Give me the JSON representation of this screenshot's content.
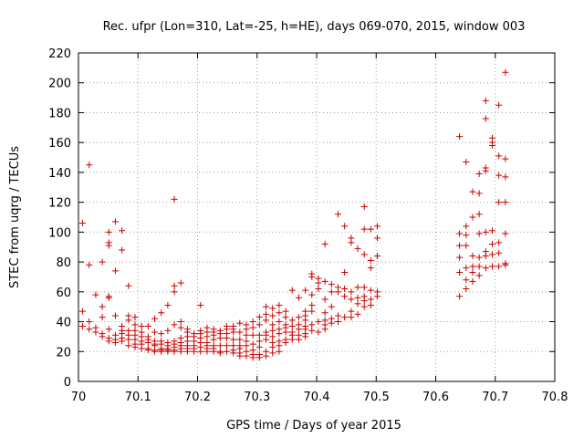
{
  "chart_data": {
    "type": "scatter",
    "title": "Rec. ufpr (Lon=310, Lat=-25, h=HE), days 069-070, 2015, window 003",
    "xlabel": "GPS time / Days of year 2015",
    "ylabel": "STEC from uqrg / TECUs",
    "xlim": [
      70,
      70.8
    ],
    "ylim": [
      0,
      220
    ],
    "xticks": [
      70,
      70.1,
      70.2,
      70.3,
      70.4,
      70.5,
      70.6,
      70.7,
      70.8
    ],
    "xtick_labels": [
      "70",
      "70.1",
      "70.2",
      "70.3",
      "70.4",
      "70.5",
      "70.6",
      "70.7",
      "70.8"
    ],
    "yticks": [
      0,
      20,
      40,
      60,
      80,
      100,
      120,
      140,
      160,
      180,
      200,
      220
    ],
    "ytick_labels": [
      "0",
      "20",
      "40",
      "60",
      "80",
      "100",
      "120",
      "140",
      "160",
      "180",
      "200",
      "220"
    ],
    "grid": true,
    "marker": "+",
    "color": "#cc0000",
    "points": [
      [
        70.007,
        106
      ],
      [
        70.007,
        47
      ],
      [
        70.007,
        37
      ],
      [
        70.018,
        78
      ],
      [
        70.018,
        145
      ],
      [
        70.018,
        40
      ],
      [
        70.018,
        35
      ],
      [
        70.029,
        58
      ],
      [
        70.029,
        36
      ],
      [
        70.029,
        33
      ],
      [
        70.04,
        80
      ],
      [
        70.04,
        50
      ],
      [
        70.04,
        43
      ],
      [
        70.04,
        32
      ],
      [
        70.04,
        30
      ],
      [
        70.051,
        100
      ],
      [
        70.051,
        93
      ],
      [
        70.051,
        91
      ],
      [
        70.051,
        57
      ],
      [
        70.051,
        56
      ],
      [
        70.051,
        35
      ],
      [
        70.051,
        29
      ],
      [
        70.051,
        27
      ],
      [
        70.062,
        107
      ],
      [
        70.062,
        74
      ],
      [
        70.062,
        44
      ],
      [
        70.062,
        31
      ],
      [
        70.062,
        28
      ],
      [
        70.062,
        26
      ],
      [
        70.073,
        101
      ],
      [
        70.073,
        88
      ],
      [
        70.073,
        37
      ],
      [
        70.073,
        34
      ],
      [
        70.073,
        32
      ],
      [
        70.073,
        29
      ],
      [
        70.073,
        27
      ],
      [
        70.084,
        64
      ],
      [
        70.084,
        44
      ],
      [
        70.084,
        41
      ],
      [
        70.084,
        34
      ],
      [
        70.084,
        31
      ],
      [
        70.084,
        28
      ],
      [
        70.084,
        24
      ],
      [
        70.095,
        43
      ],
      [
        70.095,
        38
      ],
      [
        70.095,
        34
      ],
      [
        70.095,
        31
      ],
      [
        70.095,
        28
      ],
      [
        70.095,
        25
      ],
      [
        70.095,
        23
      ],
      [
        70.106,
        37
      ],
      [
        70.106,
        33
      ],
      [
        70.106,
        30
      ],
      [
        70.106,
        27
      ],
      [
        70.106,
        25
      ],
      [
        70.106,
        22
      ],
      [
        70.117,
        37
      ],
      [
        70.117,
        30
      ],
      [
        70.117,
        28
      ],
      [
        70.117,
        26
      ],
      [
        70.117,
        22
      ],
      [
        70.117,
        21
      ],
      [
        70.128,
        42
      ],
      [
        70.128,
        33
      ],
      [
        70.128,
        27
      ],
      [
        70.128,
        25
      ],
      [
        70.128,
        24
      ],
      [
        70.128,
        21
      ],
      [
        70.128,
        20
      ],
      [
        70.139,
        46
      ],
      [
        70.139,
        32
      ],
      [
        70.139,
        27
      ],
      [
        70.139,
        25
      ],
      [
        70.139,
        22
      ],
      [
        70.139,
        21
      ],
      [
        70.139,
        20
      ],
      [
        70.15,
        51
      ],
      [
        70.15,
        34
      ],
      [
        70.15,
        26
      ],
      [
        70.15,
        24
      ],
      [
        70.15,
        22
      ],
      [
        70.15,
        21
      ],
      [
        70.15,
        20
      ],
      [
        70.161,
        122
      ],
      [
        70.161,
        64
      ],
      [
        70.161,
        60
      ],
      [
        70.161,
        38
      ],
      [
        70.161,
        27
      ],
      [
        70.161,
        25
      ],
      [
        70.161,
        23
      ],
      [
        70.161,
        21
      ],
      [
        70.161,
        20
      ],
      [
        70.172,
        66
      ],
      [
        70.172,
        40
      ],
      [
        70.172,
        36
      ],
      [
        70.172,
        29
      ],
      [
        70.172,
        26
      ],
      [
        70.172,
        24
      ],
      [
        70.172,
        22
      ],
      [
        70.172,
        20
      ],
      [
        70.183,
        35
      ],
      [
        70.183,
        33
      ],
      [
        70.183,
        30
      ],
      [
        70.183,
        27
      ],
      [
        70.183,
        24
      ],
      [
        70.183,
        22
      ],
      [
        70.183,
        20
      ],
      [
        70.194,
        32
      ],
      [
        70.194,
        30
      ],
      [
        70.194,
        27
      ],
      [
        70.194,
        24
      ],
      [
        70.194,
        22
      ],
      [
        70.194,
        20
      ],
      [
        70.205,
        51
      ],
      [
        70.205,
        34
      ],
      [
        70.205,
        32
      ],
      [
        70.205,
        29
      ],
      [
        70.205,
        26
      ],
      [
        70.205,
        23
      ],
      [
        70.205,
        20
      ],
      [
        70.216,
        36
      ],
      [
        70.216,
        33
      ],
      [
        70.216,
        30
      ],
      [
        70.216,
        26
      ],
      [
        70.216,
        24
      ],
      [
        70.216,
        22
      ],
      [
        70.216,
        20
      ],
      [
        70.227,
        35
      ],
      [
        70.227,
        33
      ],
      [
        70.227,
        31
      ],
      [
        70.227,
        28
      ],
      [
        70.227,
        24
      ],
      [
        70.227,
        22
      ],
      [
        70.227,
        20
      ],
      [
        70.238,
        34
      ],
      [
        70.238,
        32
      ],
      [
        70.238,
        29
      ],
      [
        70.238,
        24
      ],
      [
        70.238,
        20
      ],
      [
        70.238,
        19
      ],
      [
        70.249,
        37
      ],
      [
        70.249,
        35
      ],
      [
        70.249,
        32
      ],
      [
        70.249,
        29
      ],
      [
        70.249,
        24
      ],
      [
        70.249,
        20
      ],
      [
        70.26,
        37
      ],
      [
        70.26,
        35
      ],
      [
        70.26,
        33
      ],
      [
        70.26,
        28
      ],
      [
        70.26,
        24
      ],
      [
        70.26,
        21
      ],
      [
        70.26,
        19
      ],
      [
        70.271,
        39
      ],
      [
        70.271,
        33
      ],
      [
        70.271,
        28
      ],
      [
        70.271,
        24
      ],
      [
        70.271,
        22
      ],
      [
        70.271,
        19
      ],
      [
        70.271,
        17
      ],
      [
        70.282,
        38
      ],
      [
        70.282,
        35
      ],
      [
        70.282,
        31
      ],
      [
        70.282,
        27
      ],
      [
        70.282,
        24
      ],
      [
        70.282,
        20
      ],
      [
        70.282,
        17
      ],
      [
        70.293,
        40
      ],
      [
        70.293,
        36
      ],
      [
        70.293,
        31
      ],
      [
        70.293,
        25
      ],
      [
        70.293,
        21
      ],
      [
        70.293,
        18
      ],
      [
        70.293,
        16
      ],
      [
        70.304,
        43
      ],
      [
        70.304,
        38
      ],
      [
        70.304,
        31
      ],
      [
        70.304,
        27
      ],
      [
        70.304,
        23
      ],
      [
        70.304,
        18
      ],
      [
        70.304,
        16
      ],
      [
        70.315,
        50
      ],
      [
        70.315,
        45
      ],
      [
        70.315,
        41
      ],
      [
        70.315,
        33
      ],
      [
        70.315,
        31
      ],
      [
        70.315,
        28
      ],
      [
        70.315,
        20
      ],
      [
        70.315,
        17
      ],
      [
        70.326,
        49
      ],
      [
        70.326,
        44
      ],
      [
        70.326,
        38
      ],
      [
        70.326,
        34
      ],
      [
        70.326,
        30
      ],
      [
        70.326,
        26
      ],
      [
        70.326,
        23
      ],
      [
        70.326,
        19
      ],
      [
        70.337,
        51
      ],
      [
        70.337,
        46
      ],
      [
        70.337,
        40
      ],
      [
        70.337,
        35
      ],
      [
        70.337,
        32
      ],
      [
        70.337,
        27
      ],
      [
        70.337,
        24
      ],
      [
        70.337,
        20
      ],
      [
        70.348,
        47
      ],
      [
        70.348,
        43
      ],
      [
        70.348,
        38
      ],
      [
        70.348,
        36
      ],
      [
        70.348,
        33
      ],
      [
        70.348,
        28
      ],
      [
        70.348,
        26
      ],
      [
        70.359,
        61
      ],
      [
        70.359,
        41
      ],
      [
        70.359,
        37
      ],
      [
        70.359,
        33
      ],
      [
        70.359,
        31
      ],
      [
        70.359,
        28
      ],
      [
        70.37,
        56
      ],
      [
        70.37,
        43
      ],
      [
        70.37,
        38
      ],
      [
        70.37,
        35
      ],
      [
        70.37,
        31
      ],
      [
        70.37,
        28
      ],
      [
        70.381,
        61
      ],
      [
        70.381,
        47
      ],
      [
        70.381,
        44
      ],
      [
        70.381,
        41
      ],
      [
        70.381,
        37
      ],
      [
        70.381,
        35
      ],
      [
        70.381,
        32
      ],
      [
        70.381,
        30
      ],
      [
        70.392,
        72
      ],
      [
        70.392,
        70
      ],
      [
        70.392,
        58
      ],
      [
        70.392,
        51
      ],
      [
        70.392,
        47
      ],
      [
        70.392,
        38
      ],
      [
        70.392,
        34
      ],
      [
        70.403,
        69
      ],
      [
        70.403,
        66
      ],
      [
        70.403,
        62
      ],
      [
        70.403,
        40
      ],
      [
        70.403,
        33
      ],
      [
        70.414,
        92
      ],
      [
        70.414,
        67
      ],
      [
        70.414,
        55
      ],
      [
        70.414,
        46
      ],
      [
        70.414,
        41
      ],
      [
        70.414,
        38
      ],
      [
        70.414,
        35
      ],
      [
        70.425,
        65
      ],
      [
        70.425,
        60
      ],
      [
        70.425,
        50
      ],
      [
        70.425,
        42
      ],
      [
        70.425,
        39
      ],
      [
        70.436,
        112
      ],
      [
        70.436,
        63
      ],
      [
        70.436,
        60
      ],
      [
        70.436,
        44
      ],
      [
        70.436,
        40
      ],
      [
        70.447,
        104
      ],
      [
        70.447,
        73
      ],
      [
        70.447,
        62
      ],
      [
        70.447,
        57
      ],
      [
        70.447,
        43
      ],
      [
        70.458,
        96
      ],
      [
        70.458,
        93
      ],
      [
        70.458,
        60
      ],
      [
        70.458,
        55
      ],
      [
        70.458,
        47
      ],
      [
        70.458,
        43
      ],
      [
        70.469,
        89
      ],
      [
        70.469,
        63
      ],
      [
        70.469,
        56
      ],
      [
        70.469,
        52
      ],
      [
        70.469,
        45
      ],
      [
        70.48,
        117
      ],
      [
        70.48,
        102
      ],
      [
        70.48,
        85
      ],
      [
        70.48,
        63
      ],
      [
        70.48,
        57
      ],
      [
        70.48,
        54
      ],
      [
        70.48,
        50
      ],
      [
        70.491,
        102
      ],
      [
        70.491,
        81
      ],
      [
        70.491,
        76
      ],
      [
        70.491,
        61
      ],
      [
        70.491,
        55
      ],
      [
        70.491,
        51
      ],
      [
        70.502,
        104
      ],
      [
        70.502,
        96
      ],
      [
        70.502,
        84
      ],
      [
        70.502,
        60
      ],
      [
        70.502,
        57
      ],
      [
        70.64,
        164
      ],
      [
        70.64,
        99
      ],
      [
        70.64,
        91
      ],
      [
        70.64,
        83
      ],
      [
        70.64,
        73
      ],
      [
        70.64,
        57
      ],
      [
        70.651,
        147
      ],
      [
        70.651,
        104
      ],
      [
        70.651,
        98
      ],
      [
        70.651,
        91
      ],
      [
        70.651,
        76
      ],
      [
        70.651,
        68
      ],
      [
        70.651,
        62
      ],
      [
        70.662,
        127
      ],
      [
        70.662,
        110
      ],
      [
        70.662,
        84
      ],
      [
        70.662,
        77
      ],
      [
        70.662,
        73
      ],
      [
        70.662,
        67
      ],
      [
        70.673,
        139
      ],
      [
        70.673,
        126
      ],
      [
        70.673,
        112
      ],
      [
        70.673,
        99
      ],
      [
        70.673,
        83
      ],
      [
        70.673,
        77
      ],
      [
        70.673,
        71
      ],
      [
        70.684,
        188
      ],
      [
        70.684,
        176
      ],
      [
        70.684,
        143
      ],
      [
        70.684,
        141
      ],
      [
        70.684,
        100
      ],
      [
        70.684,
        87
      ],
      [
        70.684,
        84
      ],
      [
        70.684,
        76
      ],
      [
        70.695,
        163
      ],
      [
        70.695,
        160
      ],
      [
        70.695,
        158
      ],
      [
        70.695,
        101
      ],
      [
        70.695,
        92
      ],
      [
        70.695,
        85
      ],
      [
        70.695,
        77
      ],
      [
        70.706,
        185
      ],
      [
        70.706,
        151
      ],
      [
        70.706,
        138
      ],
      [
        70.706,
        120
      ],
      [
        70.706,
        93
      ],
      [
        70.706,
        86
      ],
      [
        70.706,
        77
      ],
      [
        70.717,
        207
      ],
      [
        70.717,
        149
      ],
      [
        70.717,
        137
      ],
      [
        70.717,
        120
      ],
      [
        70.717,
        99
      ],
      [
        70.717,
        79
      ],
      [
        70.717,
        78
      ]
    ]
  }
}
